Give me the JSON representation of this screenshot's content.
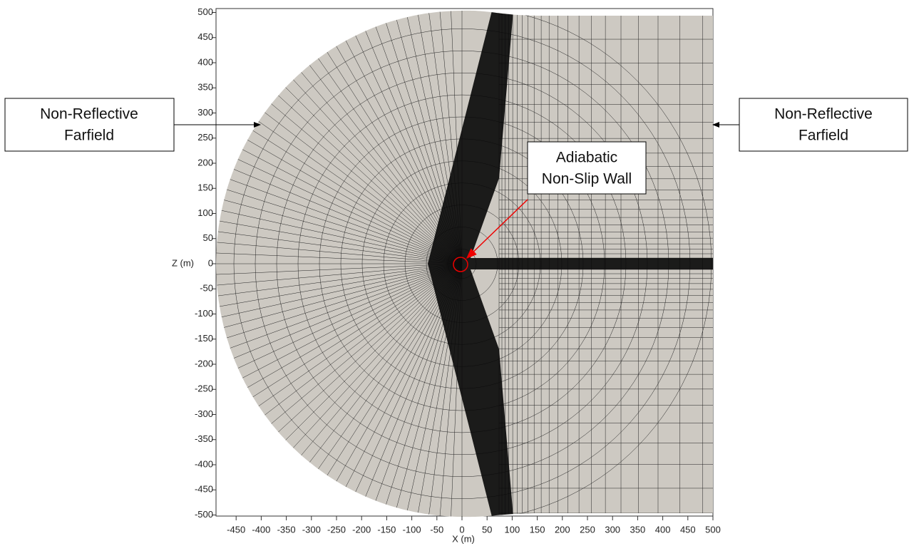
{
  "axes": {
    "x_label": "X (m)",
    "y_label": "Z (m)",
    "xticks": [
      -450,
      -400,
      -350,
      -300,
      -250,
      -200,
      -150,
      -100,
      -50,
      0,
      50,
      100,
      150,
      200,
      250,
      300,
      350,
      400,
      450,
      500
    ],
    "yticks": [
      500,
      450,
      400,
      350,
      300,
      250,
      200,
      150,
      100,
      50,
      0,
      -50,
      -100,
      -150,
      -200,
      -250,
      -300,
      -350,
      -400,
      -450,
      -500
    ]
  },
  "annotations": [
    {
      "lines": [
        "Non-Reflective",
        "Farfield"
      ]
    },
    {
      "lines": [
        "Non-Reflective",
        "Farfield"
      ]
    },
    {
      "lines": [
        "Adiabatic",
        "Non-Slip Wall"
      ]
    }
  ]
}
